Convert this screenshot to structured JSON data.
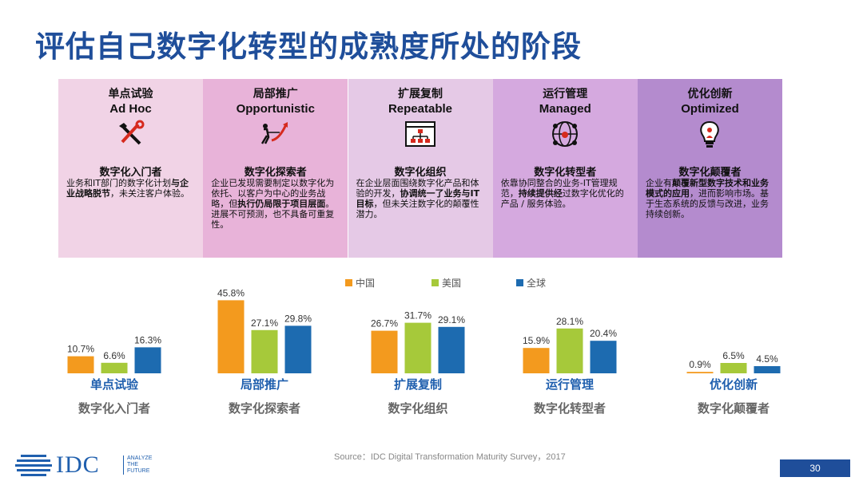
{
  "slide": {
    "title": "评估自己数字化转型的成熟度所处的阶段",
    "source": "Source：IDC Digital Transformation Maturity Survey，2017",
    "page_number": "30",
    "logo_text": "IDC",
    "logo_tagline": [
      "ANALYZE",
      "THE",
      "FUTURE"
    ]
  },
  "stages": [
    {
      "name_cn": "单点试验",
      "name_en": "Ad Hoc",
      "role": "数字化入门者",
      "icon": "tools-icon",
      "bg": "#f1d3e6",
      "desc": [
        {
          "t": "业务和IT部门的数字化计划",
          "b": false
        },
        {
          "t": "与企业战略脱节",
          "b": true
        },
        {
          "t": "，未关注客户体验。",
          "b": false
        }
      ]
    },
    {
      "name_cn": "局部推广",
      "name_en": "Opportunistic",
      "role": "数字化探索者",
      "icon": "tug-of-war-icon",
      "bg": "#e8b3d9",
      "desc": [
        {
          "t": "企业已发现需要制定以数字化为依托、以客户为中心的业务战略，但",
          "b": false
        },
        {
          "t": "执行仍局限于项目层面",
          "b": true
        },
        {
          "t": "。进展不可预测，也不具备可重复性。",
          "b": false
        }
      ]
    },
    {
      "name_cn": "扩展复制",
      "name_en": "Repeatable",
      "role": "数字化组织",
      "icon": "org-chart-window-icon",
      "bg": "#e5c9e6",
      "desc": [
        {
          "t": "在企业层面围绕数字化产品和体验的开发，",
          "b": false
        },
        {
          "t": "协调统一了业务与IT目标",
          "b": true
        },
        {
          "t": "，但未关注数字化的颠覆性潜力。",
          "b": false
        }
      ]
    },
    {
      "name_cn": "运行管理",
      "name_en": "Managed",
      "role": "数字化转型者",
      "icon": "global-network-icon",
      "bg": "#d5a9df",
      "desc": [
        {
          "t": "依靠协同整合的业务-IT管理规范，",
          "b": false
        },
        {
          "t": "持续提供经",
          "b": true
        },
        {
          "t": "过数字化优化的产品 / 服务体验。",
          "b": false
        }
      ]
    },
    {
      "name_cn": "优化创新",
      "name_en": "Optimized",
      "role": "数字化颠覆者",
      "icon": "lightbulb-icon",
      "bg": "#b48bce",
      "desc": [
        {
          "t": "企业有",
          "b": false
        },
        {
          "t": "颠覆新型数字技术和业务模式的应用",
          "b": true
        },
        {
          "t": "，进而影响市场。基于生态系统的反馈与改进，业务持续创新。",
          "b": false
        }
      ]
    }
  ],
  "chart_data": {
    "type": "bar",
    "categories": [
      "单点试验",
      "局部推广",
      "扩展复制",
      "运行管理",
      "优化创新"
    ],
    "category_roles": [
      "数字化入门者",
      "数字化探索者",
      "数字化组织",
      "数字化转型者",
      "数字化颠覆者"
    ],
    "series": [
      {
        "name": "中国",
        "color": "#f39a1e",
        "values": [
          10.7,
          45.8,
          26.7,
          15.9,
          0.9
        ]
      },
      {
        "name": "美国",
        "color": "#a6c93a",
        "values": [
          6.6,
          27.1,
          31.7,
          28.1,
          6.5
        ]
      },
      {
        "name": "全球",
        "color": "#1d6bb0",
        "values": [
          16.3,
          29.8,
          29.1,
          20.4,
          4.5
        ]
      }
    ],
    "value_suffix": "%",
    "ylim": [
      0,
      50
    ],
    "legend_position": "top-center",
    "grid": false
  }
}
